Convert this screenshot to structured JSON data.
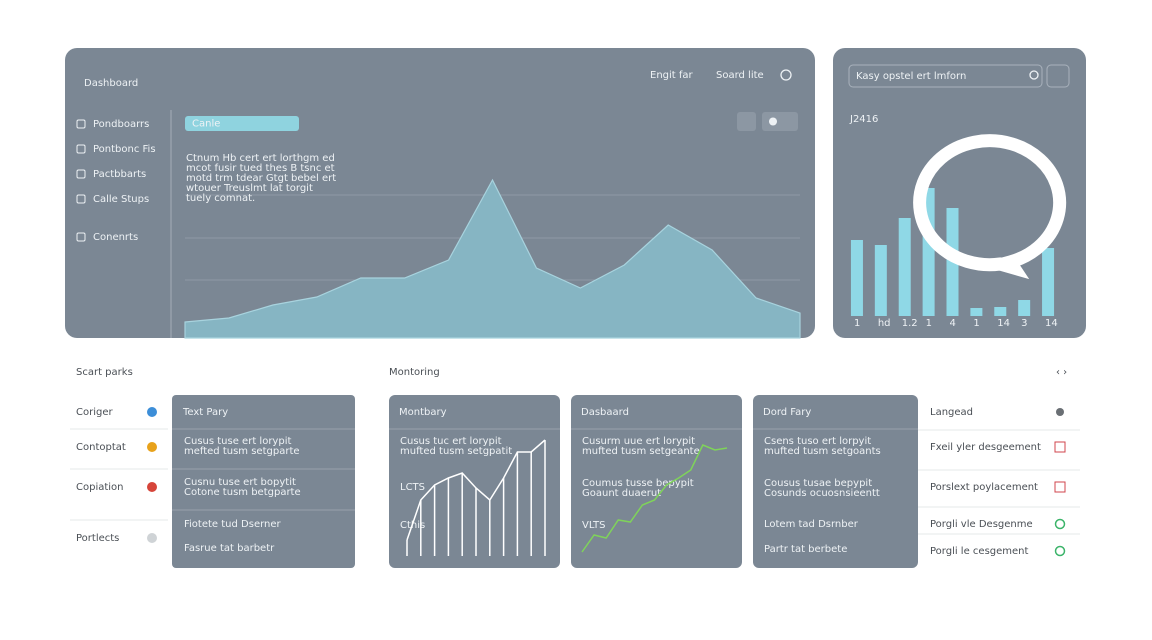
{
  "header": {
    "title": "Dashboard",
    "menu": [
      "Engit far",
      "Soard lite"
    ]
  },
  "sidebar": [
    "Pondboarrs",
    "Pontbonc Fis",
    "Pactbbarts",
    "Calle Stups",
    "Conenrts"
  ],
  "main_panel": {
    "tag": "Canle",
    "paragraph": [
      "Ctnum Hb cert ert lorthgm ed",
      "mcot fusir tued thes B tsnc et",
      "motd trm tdear Gtgt bebel ert",
      "wtouer Treuslmt lat torgit",
      "tuely comnat."
    ],
    "chart": {
      "type": "area",
      "values": [
        8,
        10,
        16.5,
        20.5,
        30,
        30,
        39,
        79,
        35,
        25,
        36.5,
        56.5,
        44,
        20,
        12.5
      ],
      "ylim": [
        0,
        100
      ],
      "color": "#86b5c3"
    }
  },
  "side_panel": {
    "search": "Kasy opstel ert lmforn",
    "value": "J2416",
    "chart": {
      "type": "bar",
      "categories": [
        "1",
        "hd",
        "1.2",
        "1",
        "4",
        "1",
        "14",
        "3",
        "14"
      ],
      "values": [
        76,
        71,
        98,
        128,
        108,
        8,
        9,
        16,
        68
      ],
      "ylim": [
        0,
        140
      ],
      "color": "#8fd8e6"
    }
  },
  "quick_parts": {
    "title": "Scart parks",
    "items": [
      "Coriger",
      "Contoptat",
      "Copiation",
      "Portlects"
    ],
    "card": {
      "title": "Text Pary",
      "rows": [
        "Cusus tuse ert lorypit",
        "mefted tusm setgparte",
        "Cusnu tuse ert bopytit",
        "Cotone tusm betgparte",
        "Fiotete tud Dserner",
        "Fasrue tat barbetr"
      ]
    }
  },
  "monitoring": {
    "title": "Montoring",
    "cards": [
      {
        "title": "Montbary",
        "lines": [
          "Cusus tuc ert lorypit",
          "mufted tusm setgpatit",
          "LCTS",
          "Cthis"
        ],
        "chart": {
          "type": "steps",
          "values": [
            16,
            56,
            71,
            78,
            83,
            68,
            56,
            78,
            104,
            104,
            116
          ],
          "ylim": [
            0,
            120
          ],
          "color": "#ffffff"
        }
      },
      {
        "title": "Dasbaard",
        "lines": [
          "Cusurm uue ert lorypit",
          "mufted tusm setgeante",
          "Coumus tusse bepypit",
          "Goaunt duaerut",
          "VLTS"
        ],
        "chart": {
          "type": "line",
          "values": [
            8,
            25,
            22,
            40,
            38,
            55,
            60,
            75,
            82,
            90,
            115,
            110,
            112
          ],
          "ylim": [
            0,
            120
          ],
          "color": "#7fd35a"
        }
      },
      {
        "title": "Dord Fary",
        "lines": [
          "Csens tuso ert lorpyit",
          "mufted tusm setgoants",
          "Cousus tusae bepypit",
          "Cosunds ocuosnsieentt",
          "Lotem tad Dsrnber",
          "Partr tat berbete"
        ]
      }
    ],
    "list": {
      "title": "Langead",
      "items": [
        "Fxeil yler desgeement",
        "Porslext poylacement",
        "Porgli vle Desgenme",
        "Porgli le cesgement"
      ]
    }
  }
}
